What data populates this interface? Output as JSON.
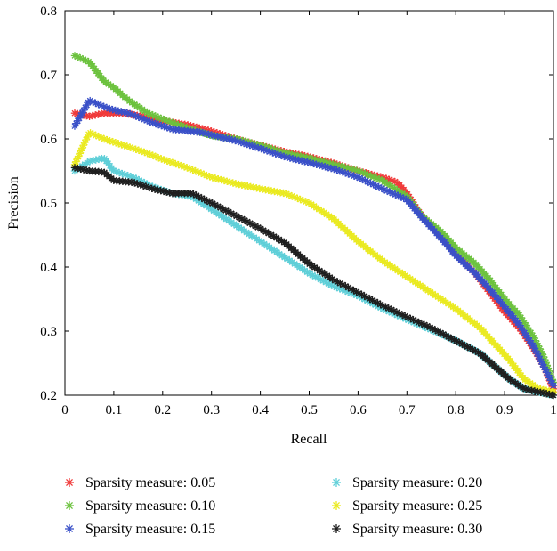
{
  "chart_data": {
    "type": "scatter",
    "xlabel": "Recall",
    "ylabel": "Precision",
    "xlim": [
      0,
      1
    ],
    "ylim": [
      0.2,
      0.8
    ],
    "xticks": [
      "0",
      "0.1",
      "0.2",
      "0.3",
      "0.4",
      "0.5",
      "0.6",
      "0.7",
      "0.8",
      "0.9",
      "1"
    ],
    "yticks": [
      "0.2",
      "0.3",
      "0.4",
      "0.5",
      "0.6",
      "0.7",
      "0.8"
    ],
    "grid": false,
    "legend_position": "bottom",
    "marker": "asterisk",
    "series": [
      {
        "name": "Sparsity measure: 0.05",
        "color": "#f03a3a",
        "points": [
          [
            0.02,
            0.64
          ],
          [
            0.05,
            0.635
          ],
          [
            0.08,
            0.64
          ],
          [
            0.12,
            0.64
          ],
          [
            0.16,
            0.635
          ],
          [
            0.2,
            0.628
          ],
          [
            0.25,
            0.622
          ],
          [
            0.3,
            0.612
          ],
          [
            0.35,
            0.6
          ],
          [
            0.4,
            0.59
          ],
          [
            0.45,
            0.58
          ],
          [
            0.5,
            0.572
          ],
          [
            0.55,
            0.562
          ],
          [
            0.6,
            0.55
          ],
          [
            0.65,
            0.54
          ],
          [
            0.68,
            0.532
          ],
          [
            0.7,
            0.515
          ],
          [
            0.73,
            0.48
          ],
          [
            0.77,
            0.448
          ],
          [
            0.8,
            0.42
          ],
          [
            0.84,
            0.39
          ],
          [
            0.87,
            0.36
          ],
          [
            0.9,
            0.33
          ],
          [
            0.93,
            0.305
          ],
          [
            0.96,
            0.272
          ],
          [
            0.98,
            0.245
          ],
          [
            1.0,
            0.21
          ]
        ]
      },
      {
        "name": "Sparsity measure: 0.10",
        "color": "#6cc23e",
        "points": [
          [
            0.02,
            0.73
          ],
          [
            0.05,
            0.72
          ],
          [
            0.08,
            0.69
          ],
          [
            0.1,
            0.68
          ],
          [
            0.13,
            0.66
          ],
          [
            0.17,
            0.64
          ],
          [
            0.22,
            0.625
          ],
          [
            0.3,
            0.605
          ],
          [
            0.35,
            0.6
          ],
          [
            0.4,
            0.59
          ],
          [
            0.45,
            0.578
          ],
          [
            0.5,
            0.57
          ],
          [
            0.55,
            0.56
          ],
          [
            0.6,
            0.55
          ],
          [
            0.65,
            0.535
          ],
          [
            0.7,
            0.51
          ],
          [
            0.73,
            0.48
          ],
          [
            0.77,
            0.455
          ],
          [
            0.8,
            0.43
          ],
          [
            0.84,
            0.405
          ],
          [
            0.87,
            0.38
          ],
          [
            0.9,
            0.35
          ],
          [
            0.93,
            0.325
          ],
          [
            0.96,
            0.29
          ],
          [
            0.98,
            0.26
          ],
          [
            1.0,
            0.22
          ]
        ]
      },
      {
        "name": "Sparsity measure: 0.15",
        "color": "#3a50c8",
        "points": [
          [
            0.02,
            0.62
          ],
          [
            0.05,
            0.66
          ],
          [
            0.08,
            0.65
          ],
          [
            0.1,
            0.645
          ],
          [
            0.13,
            0.64
          ],
          [
            0.18,
            0.625
          ],
          [
            0.22,
            0.615
          ],
          [
            0.28,
            0.61
          ],
          [
            0.35,
            0.597
          ],
          [
            0.4,
            0.585
          ],
          [
            0.45,
            0.572
          ],
          [
            0.5,
            0.563
          ],
          [
            0.55,
            0.553
          ],
          [
            0.6,
            0.54
          ],
          [
            0.65,
            0.522
          ],
          [
            0.7,
            0.505
          ],
          [
            0.73,
            0.478
          ],
          [
            0.77,
            0.445
          ],
          [
            0.8,
            0.418
          ],
          [
            0.84,
            0.39
          ],
          [
            0.87,
            0.365
          ],
          [
            0.9,
            0.338
          ],
          [
            0.93,
            0.31
          ],
          [
            0.96,
            0.275
          ],
          [
            0.98,
            0.245
          ],
          [
            1.0,
            0.215
          ]
        ]
      },
      {
        "name": "Sparsity measure: 0.20",
        "color": "#5fcfd8",
        "points": [
          [
            0.02,
            0.55
          ],
          [
            0.05,
            0.565
          ],
          [
            0.08,
            0.57
          ],
          [
            0.1,
            0.55
          ],
          [
            0.14,
            0.54
          ],
          [
            0.18,
            0.525
          ],
          [
            0.22,
            0.515
          ],
          [
            0.26,
            0.51
          ],
          [
            0.3,
            0.49
          ],
          [
            0.35,
            0.465
          ],
          [
            0.4,
            0.44
          ],
          [
            0.45,
            0.415
          ],
          [
            0.5,
            0.39
          ],
          [
            0.55,
            0.37
          ],
          [
            0.6,
            0.355
          ],
          [
            0.65,
            0.335
          ],
          [
            0.7,
            0.318
          ],
          [
            0.75,
            0.302
          ],
          [
            0.8,
            0.285
          ],
          [
            0.85,
            0.265
          ],
          [
            0.88,
            0.245
          ],
          [
            0.91,
            0.225
          ],
          [
            0.94,
            0.21
          ],
          [
            0.97,
            0.205
          ],
          [
            1.0,
            0.2
          ]
        ]
      },
      {
        "name": "Sparsity measure: 0.25",
        "color": "#eaea20",
        "points": [
          [
            0.02,
            0.56
          ],
          [
            0.05,
            0.61
          ],
          [
            0.08,
            0.6
          ],
          [
            0.12,
            0.59
          ],
          [
            0.16,
            0.58
          ],
          [
            0.2,
            0.568
          ],
          [
            0.25,
            0.555
          ],
          [
            0.3,
            0.54
          ],
          [
            0.35,
            0.53
          ],
          [
            0.4,
            0.522
          ],
          [
            0.45,
            0.515
          ],
          [
            0.5,
            0.5
          ],
          [
            0.55,
            0.475
          ],
          [
            0.6,
            0.44
          ],
          [
            0.65,
            0.41
          ],
          [
            0.7,
            0.385
          ],
          [
            0.75,
            0.36
          ],
          [
            0.8,
            0.335
          ],
          [
            0.85,
            0.305
          ],
          [
            0.88,
            0.28
          ],
          [
            0.91,
            0.255
          ],
          [
            0.94,
            0.225
          ],
          [
            0.97,
            0.21
          ],
          [
            1.0,
            0.205
          ]
        ]
      },
      {
        "name": "Sparsity measure: 0.30",
        "color": "#1f1f1f",
        "points": [
          [
            0.02,
            0.555
          ],
          [
            0.05,
            0.55
          ],
          [
            0.08,
            0.548
          ],
          [
            0.1,
            0.535
          ],
          [
            0.14,
            0.532
          ],
          [
            0.18,
            0.522
          ],
          [
            0.22,
            0.515
          ],
          [
            0.26,
            0.515
          ],
          [
            0.3,
            0.5
          ],
          [
            0.35,
            0.48
          ],
          [
            0.4,
            0.46
          ],
          [
            0.45,
            0.438
          ],
          [
            0.5,
            0.405
          ],
          [
            0.55,
            0.38
          ],
          [
            0.6,
            0.36
          ],
          [
            0.65,
            0.34
          ],
          [
            0.7,
            0.322
          ],
          [
            0.75,
            0.305
          ],
          [
            0.8,
            0.285
          ],
          [
            0.85,
            0.265
          ],
          [
            0.88,
            0.245
          ],
          [
            0.91,
            0.225
          ],
          [
            0.94,
            0.21
          ],
          [
            0.97,
            0.205
          ],
          [
            1.0,
            0.2
          ]
        ]
      }
    ]
  }
}
